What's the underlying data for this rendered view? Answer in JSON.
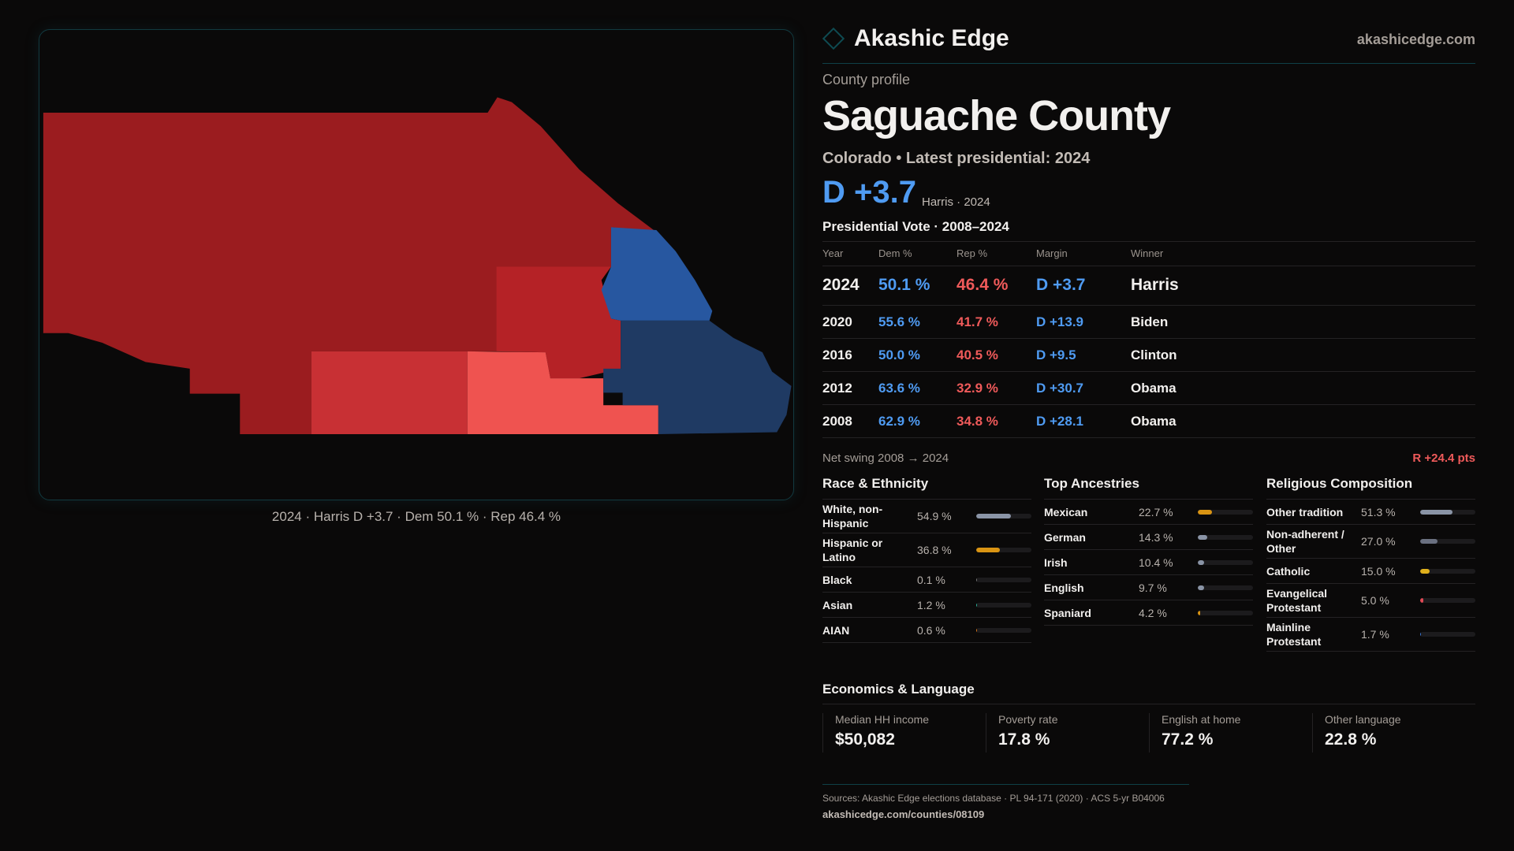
{
  "brand": {
    "name": "Akashic Edge",
    "site": "akashicedge.com"
  },
  "profile": {
    "kicker": "County profile",
    "title": "Saguache County",
    "subtitle": "Colorado • Latest presidential: 2024",
    "margin": "D +3.7",
    "margin_note": "Harris · 2024"
  },
  "map": {
    "caption": "2024 · Harris D +3.7 · Dem 50.1 % · Rep 46.4 %"
  },
  "votes": {
    "title": "Presidential Vote · 2008–2024",
    "headers": [
      "Year",
      "Dem %",
      "Rep %",
      "Margin",
      "Winner"
    ],
    "rows": [
      [
        "2024",
        "50.1 %",
        "46.4 %",
        "D +3.7",
        "Harris"
      ],
      [
        "2020",
        "55.6 %",
        "41.7 %",
        "D +13.9",
        "Biden"
      ],
      [
        "2016",
        "50.0 %",
        "40.5 %",
        "D +9.5",
        "Clinton"
      ],
      [
        "2012",
        "63.6 %",
        "32.9 %",
        "D +30.7",
        "Obama"
      ],
      [
        "2008",
        "62.9 %",
        "34.8 %",
        "D +28.1",
        "Obama"
      ]
    ],
    "swing_label": "Net swing 2008 → 2024",
    "swing_value": "R +24.4 pts"
  },
  "race": {
    "title": "Race & Ethnicity",
    "items": [
      {
        "label": "White, non-Hispanic",
        "value": "54.9 %",
        "pct": 54.9,
        "color": "#8a94a6"
      },
      {
        "label": "Hispanic or Latino",
        "value": "36.8 %",
        "pct": 36.8,
        "color": "#d99413"
      },
      {
        "label": "Black",
        "value": "0.1 %",
        "pct": 0.1,
        "color": "#777"
      },
      {
        "label": "Asian",
        "value": "1.2 %",
        "pct": 1.2,
        "color": "#2bb39a"
      },
      {
        "label": "AIAN",
        "value": "0.6 %",
        "pct": 0.6,
        "color": "#d9771b"
      }
    ]
  },
  "ancestry": {
    "title": "Top Ancestries",
    "items": [
      {
        "label": "Mexican",
        "value": "22.7 %",
        "pct": 22.7,
        "color": "#d99413"
      },
      {
        "label": "German",
        "value": "14.3 %",
        "pct": 14.3,
        "color": "#8a94a6"
      },
      {
        "label": "Irish",
        "value": "10.4 %",
        "pct": 10.4,
        "color": "#8a94a6"
      },
      {
        "label": "English",
        "value": "9.7 %",
        "pct": 9.7,
        "color": "#8a94a6"
      },
      {
        "label": "Spaniard",
        "value": "4.2 %",
        "pct": 4.2,
        "color": "#d99413"
      }
    ]
  },
  "religion": {
    "title": "Religious Composition",
    "items": [
      {
        "label": "Other tradition",
        "value": "51.3 %",
        "pct": 51.3,
        "color": "#8a94a6"
      },
      {
        "label": "Non-adherent / Other",
        "value": "27.0 %",
        "pct": 27.0,
        "color": "#6a7080"
      },
      {
        "label": "Catholic",
        "value": "15.0 %",
        "pct": 15.0,
        "color": "#e0b01c"
      },
      {
        "label": "Evangelical Protestant",
        "value": "5.0 %",
        "pct": 5.0,
        "color": "#e04a55"
      },
      {
        "label": "Mainline Protestant",
        "value": "1.7 %",
        "pct": 1.7,
        "color": "#3a78d8"
      }
    ]
  },
  "econ": {
    "title": "Economics & Language",
    "stats": [
      {
        "label": "Median HH income",
        "value": "$50,082"
      },
      {
        "label": "Poverty rate",
        "value": "17.8 %"
      },
      {
        "label": "English at home",
        "value": "77.2 %"
      },
      {
        "label": "Other language",
        "value": "22.8 %"
      }
    ]
  },
  "footer": {
    "sources": "Sources: Akashic Edge elections database · PL 94-171 (2020) · ACS 5-yr B04006",
    "url": "akashicedge.com/counties/08109"
  },
  "colors": {
    "dem": "#4f9bf2",
    "rep": "#ef5a5a",
    "accent": "#0f4047"
  }
}
